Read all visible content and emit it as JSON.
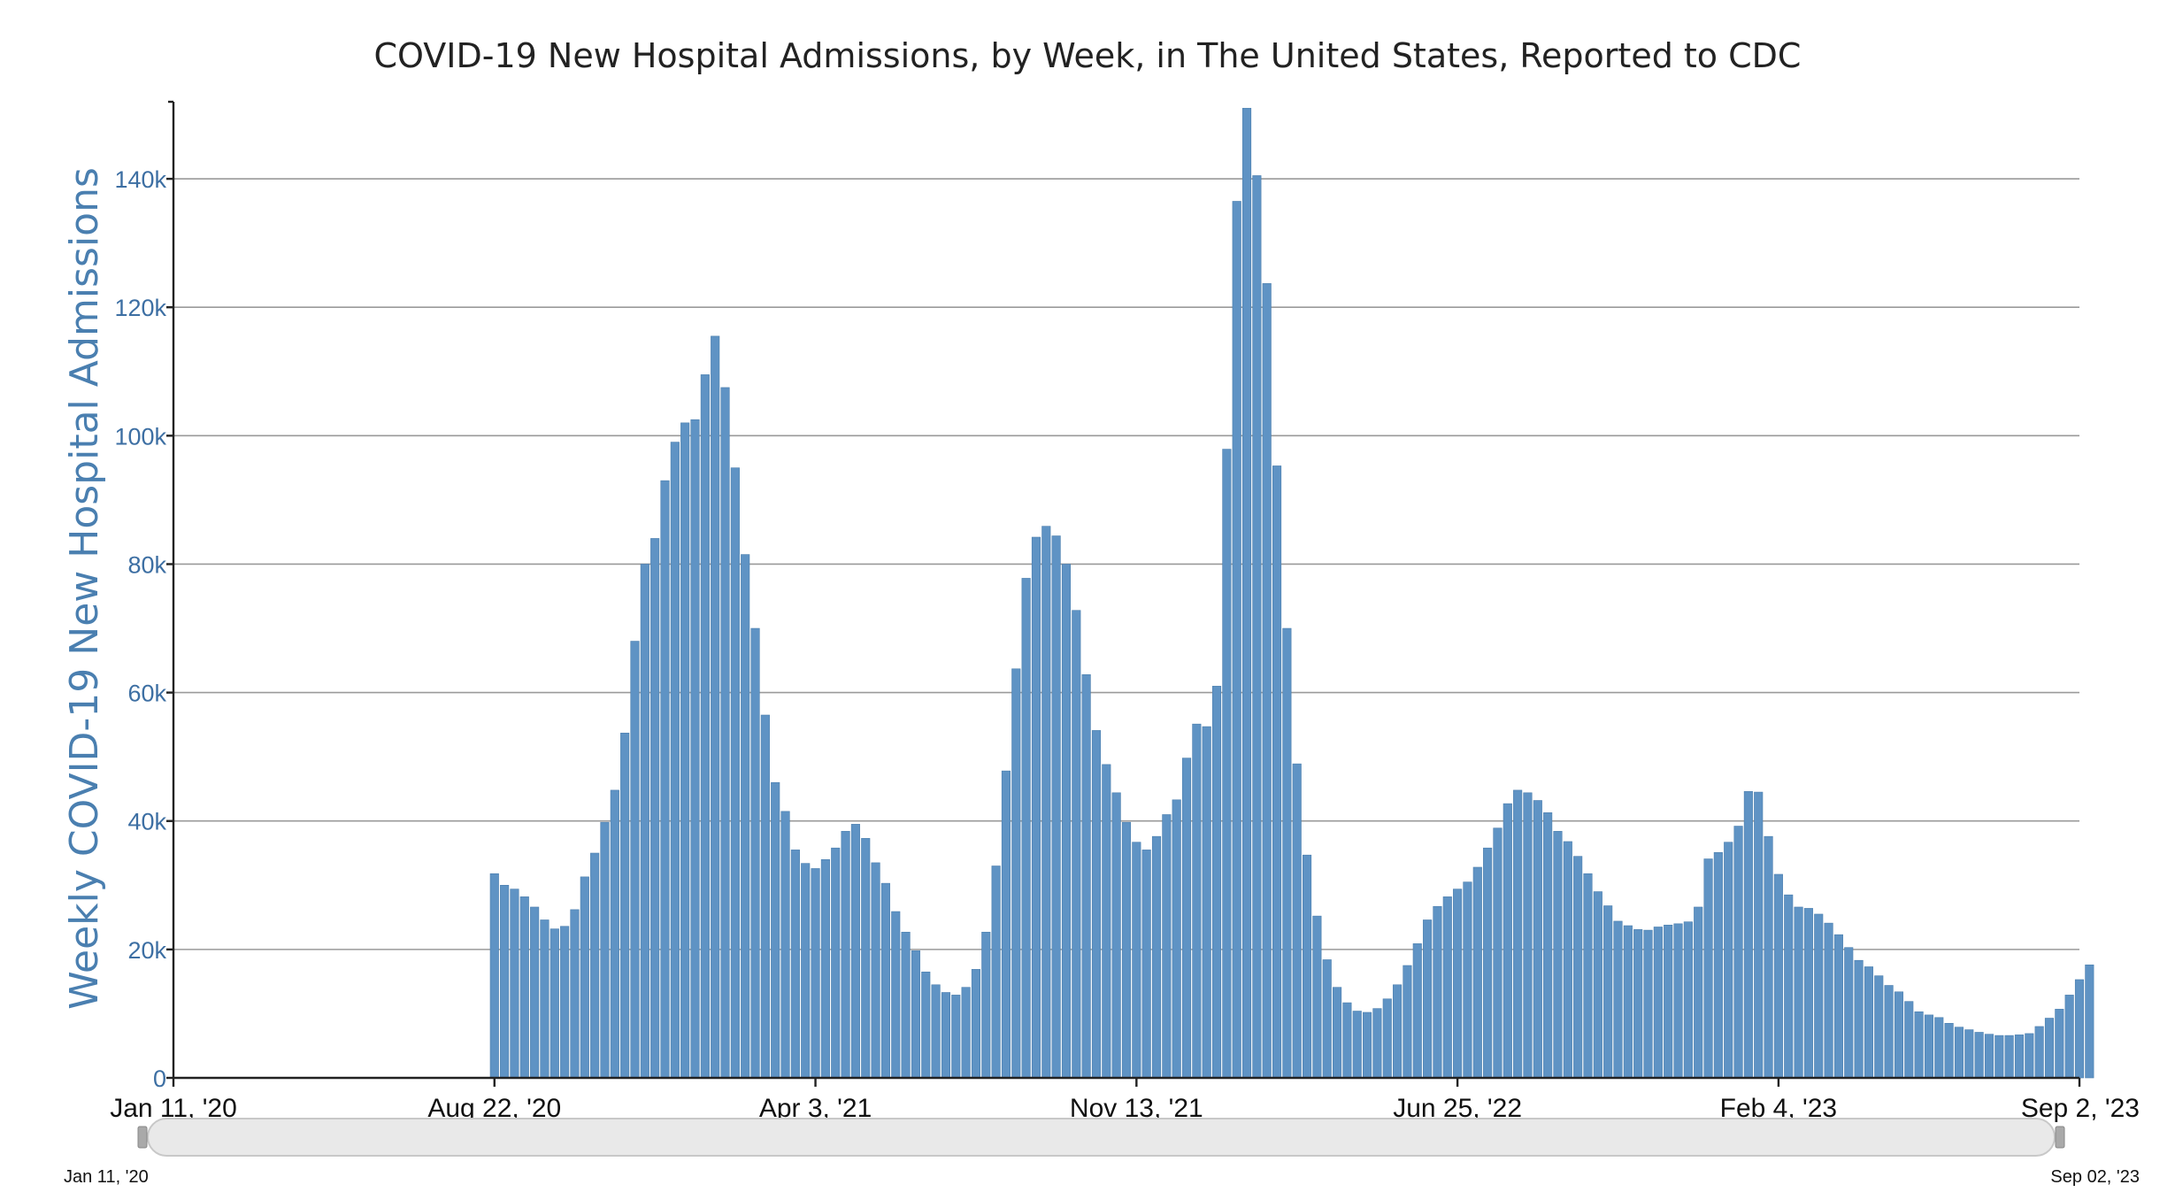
{
  "chart_data": {
    "type": "bar",
    "title": "COVID-19 New Hospital Admissions, by Week, in The United States, Reported to CDC",
    "ylabel": "Weekly COVID-19 New Hospital Admissions",
    "xlabel": "",
    "ylim": [
      0,
      152000
    ],
    "yticks": [
      0,
      20000,
      40000,
      60000,
      80000,
      100000,
      120000,
      140000
    ],
    "ytick_labels": [
      "0",
      "20k",
      "40k",
      "60k",
      "80k",
      "100k",
      "120k",
      "140k"
    ],
    "x_start_week": 0,
    "x_end_week": 190,
    "xticks": [
      {
        "week": 0,
        "label": "Jan 11, '20"
      },
      {
        "week": 32,
        "label": "Aug 22, '20"
      },
      {
        "week": 64,
        "label": "Apr 3, '21"
      },
      {
        "week": 96,
        "label": "Nov 13, '21"
      },
      {
        "week": 128,
        "label": "Jun 25, '22"
      },
      {
        "week": 160,
        "label": "Feb 4, '23"
      },
      {
        "week": 190,
        "label": "Sep 2, '23"
      }
    ],
    "first_bar_week": 32,
    "values": [
      31800,
      30000,
      29400,
      28200,
      26600,
      24600,
      23200,
      23600,
      26200,
      31300,
      35000,
      39800,
      44800,
      53700,
      68000,
      80000,
      84000,
      93000,
      99000,
      102000,
      102500,
      109500,
      115500,
      107500,
      95000,
      81500,
      70000,
      56500,
      46000,
      41500,
      35500,
      33400,
      32600,
      34000,
      35800,
      38400,
      39500,
      37300,
      33500,
      30300,
      25900,
      22700,
      19800,
      16500,
      14500,
      13300,
      12900,
      14100,
      16900,
      22700,
      33000,
      47800,
      63700,
      77800,
      84200,
      85900,
      84400,
      80000,
      72800,
      62800,
      54100,
      48800,
      44400,
      39800,
      36700,
      35500,
      37600,
      41000,
      43300,
      49800,
      55100,
      54700,
      61000,
      97900,
      136500,
      151000,
      140500,
      123700,
      95300,
      70000,
      48900,
      34700,
      25200,
      18400,
      14100,
      11700,
      10400,
      10200,
      10800,
      12300,
      14500,
      17500,
      20900,
      24600,
      26700,
      28200,
      29400,
      30500,
      32800,
      35800,
      38900,
      42700,
      44800,
      44400,
      43200,
      41300,
      38400,
      36800,
      34500,
      31800,
      29000,
      26800,
      24400,
      23700,
      23100,
      23000,
      23500,
      23800,
      24000,
      24300,
      26600,
      34100,
      35100,
      36700,
      39200,
      44600,
      44500,
      37600,
      31700,
      28500,
      26600,
      26400,
      25500,
      24100,
      22300,
      20300,
      18300,
      17300,
      15900,
      14400,
      13400,
      11900,
      10300,
      9800,
      9400,
      8500,
      7900,
      7500,
      7100,
      6800,
      6600,
      6600,
      6700,
      6900,
      8000,
      9300,
      10700,
      12900,
      15300,
      17600
    ],
    "bar_color": "#5f93c4",
    "grid": true,
    "range_selector": {
      "start_label": "Jan 11, '20",
      "end_label": "Sep 02, '23"
    }
  }
}
